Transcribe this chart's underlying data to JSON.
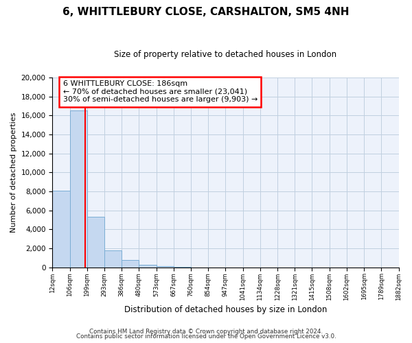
{
  "title": "6, WHITTLEBURY CLOSE, CARSHALTON, SM5 4NH",
  "subtitle": "Size of property relative to detached houses in London",
  "xlabel": "Distribution of detached houses by size in London",
  "ylabel": "Number of detached properties",
  "bar_values": [
    8100,
    16500,
    5300,
    1800,
    750,
    280,
    130,
    50,
    0,
    0,
    0,
    0,
    0,
    0,
    0,
    0,
    0,
    0,
    0,
    0
  ],
  "bin_labels": [
    "12sqm",
    "106sqm",
    "199sqm",
    "293sqm",
    "386sqm",
    "480sqm",
    "573sqm",
    "667sqm",
    "760sqm",
    "854sqm",
    "947sqm",
    "1041sqm",
    "1134sqm",
    "1228sqm",
    "1321sqm",
    "1415sqm",
    "1508sqm",
    "1602sqm",
    "1695sqm",
    "1789sqm",
    "1882sqm"
  ],
  "bar_color": "#c5d8f0",
  "bar_edge_color": "#7aadd4",
  "property_label": "6 WHITTLEBURY CLOSE: 186sqm",
  "annotation_line1": "← 70% of detached houses are smaller (23,041)",
  "annotation_line2": "30% of semi-detached houses are larger (9,903) →",
  "vline_color": "red",
  "vline_x": 1.87,
  "ylim": [
    0,
    20000
  ],
  "yticks": [
    0,
    2000,
    4000,
    6000,
    8000,
    10000,
    12000,
    14000,
    16000,
    18000,
    20000
  ],
  "footnote1": "Contains HM Land Registry data © Crown copyright and database right 2024.",
  "footnote2": "Contains public sector information licensed under the Open Government Licence v3.0.",
  "bg_color": "#ffffff",
  "plot_bg_color": "#edf2fb",
  "grid_color": "#c0cfe0"
}
